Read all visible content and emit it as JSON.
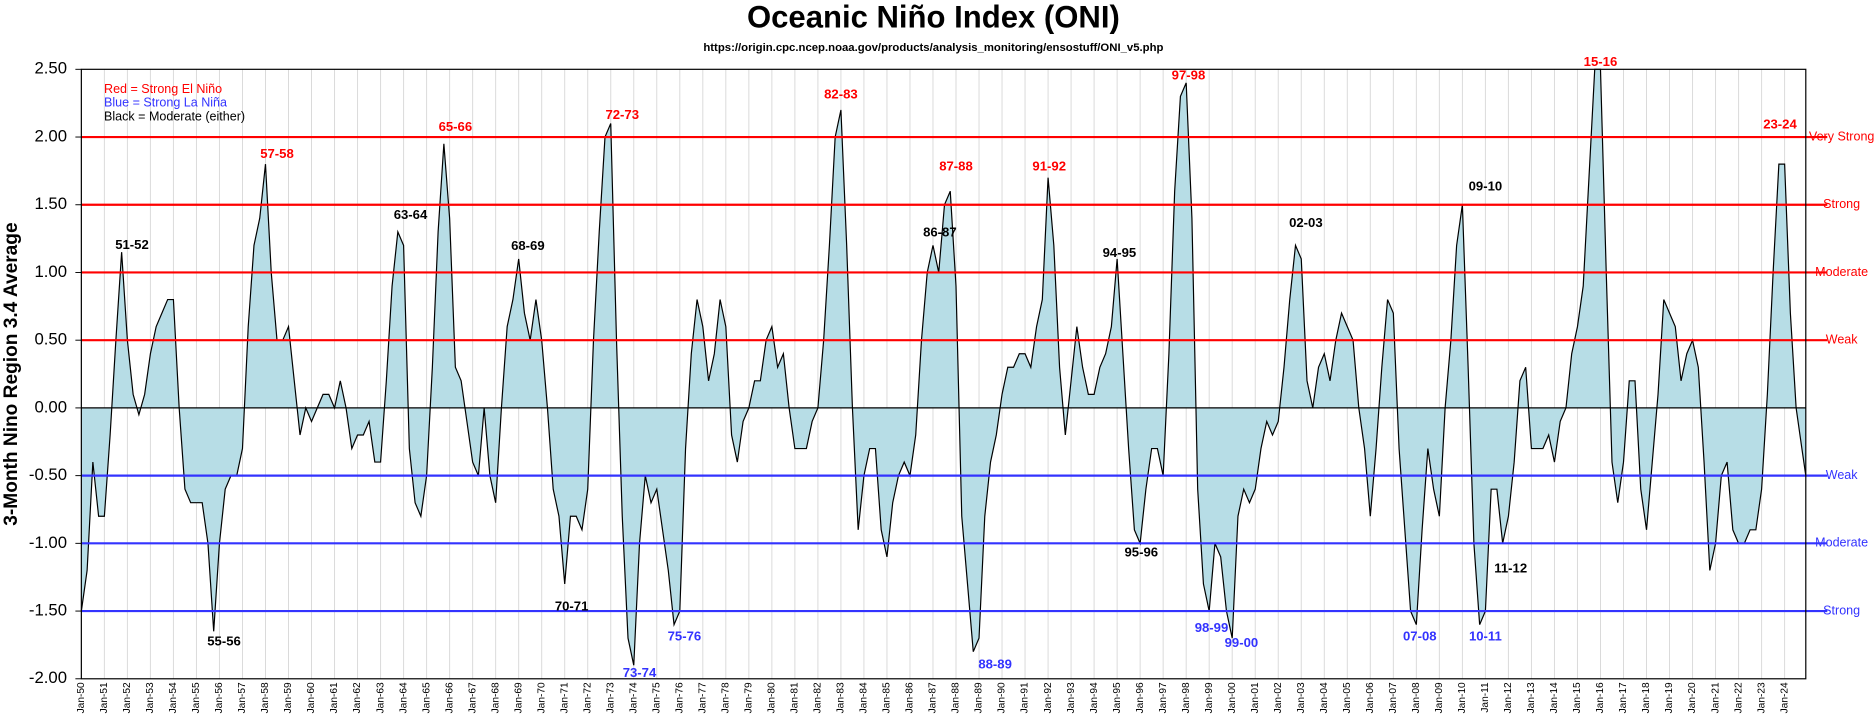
{
  "chart_data": {
    "type": "area",
    "title": "Oceanic Niño Index (ONI)",
    "subtitle": "https://origin.cpc.ncep.noaa.gov/products/analysis_monitoring/ensostuff/ONI_v5.php",
    "y_label": "3-Month Nino Region 3.4 Average",
    "legend_notes": [
      {
        "text": "Red = Strong  El Niño",
        "color": "#ff0000"
      },
      {
        "text": "Blue = Strong  La Niña",
        "color": "#3333ff"
      },
      {
        "text": "Black = Moderate  (either)",
        "color": "#000000"
      }
    ],
    "fill_color": "#b7dde6",
    "line_color": "#000000",
    "grid": true,
    "xlim": [
      1950,
      2024.92
    ],
    "ylim": [
      -2.0,
      2.5
    ],
    "yticks": [
      {
        "value": -2.0,
        "label": "-2.00"
      },
      {
        "value": -1.5,
        "label": "-1.50"
      },
      {
        "value": -1.0,
        "label": "-1.00"
      },
      {
        "value": -0.5,
        "label": "-0.50"
      },
      {
        "value": 0,
        "label": "0.00"
      },
      {
        "value": 0.5,
        "label": "0.50"
      },
      {
        "value": 1.0,
        "label": "1.00"
      },
      {
        "value": 1.5,
        "label": "1.50"
      },
      {
        "value": 2.0,
        "label": "2.00"
      },
      {
        "value": 2.5,
        "label": "2.50"
      }
    ],
    "xticks": [
      {
        "value": 1950,
        "label": "Jan-50"
      },
      {
        "value": 1951,
        "label": "Jan-51"
      },
      {
        "value": 1952,
        "label": "Jan-52"
      },
      {
        "value": 1953,
        "label": "Jan-53"
      },
      {
        "value": 1954,
        "label": "Jan-54"
      },
      {
        "value": 1955,
        "label": "Jan-55"
      },
      {
        "value": 1956,
        "label": "Jan-56"
      },
      {
        "value": 1957,
        "label": "Jan-57"
      },
      {
        "value": 1958,
        "label": "Jan-58"
      },
      {
        "value": 1959,
        "label": "Jan-59"
      },
      {
        "value": 1960,
        "label": "Jan-60"
      },
      {
        "value": 1961,
        "label": "Jan-61"
      },
      {
        "value": 1962,
        "label": "Jan-62"
      },
      {
        "value": 1963,
        "label": "Jan-63"
      },
      {
        "value": 1964,
        "label": "Jan-64"
      },
      {
        "value": 1965,
        "label": "Jan-65"
      },
      {
        "value": 1966,
        "label": "Jan-66"
      },
      {
        "value": 1967,
        "label": "Jan-67"
      },
      {
        "value": 1968,
        "label": "Jan-68"
      },
      {
        "value": 1969,
        "label": "Jan-69"
      },
      {
        "value": 1970,
        "label": "Jan-70"
      },
      {
        "value": 1971,
        "label": "Jan-71"
      },
      {
        "value": 1972,
        "label": "Jan-72"
      },
      {
        "value": 1973,
        "label": "Jan-73"
      },
      {
        "value": 1974,
        "label": "Jan-74"
      },
      {
        "value": 1975,
        "label": "Jan-75"
      },
      {
        "value": 1976,
        "label": "Jan-76"
      },
      {
        "value": 1977,
        "label": "Jan-77"
      },
      {
        "value": 1978,
        "label": "Jan-78"
      },
      {
        "value": 1979,
        "label": "Jan-79"
      },
      {
        "value": 1980,
        "label": "Jan-80"
      },
      {
        "value": 1981,
        "label": "Jan-81"
      },
      {
        "value": 1982,
        "label": "Jan-82"
      },
      {
        "value": 1983,
        "label": "Jan-83"
      },
      {
        "value": 1984,
        "label": "Jan-84"
      },
      {
        "value": 1985,
        "label": "Jan-85"
      },
      {
        "value": 1986,
        "label": "Jan-86"
      },
      {
        "value": 1987,
        "label": "Jan-87"
      },
      {
        "value": 1988,
        "label": "Jan-88"
      },
      {
        "value": 1989,
        "label": "Jan-89"
      },
      {
        "value": 1990,
        "label": "Jan-90"
      },
      {
        "value": 1991,
        "label": "Jan-91"
      },
      {
        "value": 1992,
        "label": "Jan-92"
      },
      {
        "value": 1993,
        "label": "Jan-93"
      },
      {
        "value": 1994,
        "label": "Jan-94"
      },
      {
        "value": 1995,
        "label": "Jan-95"
      },
      {
        "value": 1996,
        "label": "Jan-96"
      },
      {
        "value": 1997,
        "label": "Jan-97"
      },
      {
        "value": 1998,
        "label": "Jan-98"
      },
      {
        "value": 1999,
        "label": "Jan-99"
      },
      {
        "value": 2000,
        "label": "Jan-00"
      },
      {
        "value": 2001,
        "label": "Jan-01"
      },
      {
        "value": 2002,
        "label": "Jan-02"
      },
      {
        "value": 2003,
        "label": "Jan-03"
      },
      {
        "value": 2004,
        "label": "Jan-04"
      },
      {
        "value": 2005,
        "label": "Jan-05"
      },
      {
        "value": 2006,
        "label": "Jan-06"
      },
      {
        "value": 2007,
        "label": "Jan-07"
      },
      {
        "value": 2008,
        "label": "Jan-08"
      },
      {
        "value": 2009,
        "label": "Jan-09"
      },
      {
        "value": 2010,
        "label": "Jan-10"
      },
      {
        "value": 2011,
        "label": "Jan-11"
      },
      {
        "value": 2012,
        "label": "Jan-12"
      },
      {
        "value": 2013,
        "label": "Jan-13"
      },
      {
        "value": 2014,
        "label": "Jan-14"
      },
      {
        "value": 2015,
        "label": "Jan-15"
      },
      {
        "value": 2016,
        "label": "Jan-16"
      },
      {
        "value": 2017,
        "label": "Jan-17"
      },
      {
        "value": 2018,
        "label": "Jan-18"
      },
      {
        "value": 2019,
        "label": "Jan-19"
      },
      {
        "value": 2020,
        "label": "Jan-20"
      },
      {
        "value": 2021,
        "label": "Jan-21"
      },
      {
        "value": 2022,
        "label": "Jan-22"
      },
      {
        "value": 2023,
        "label": "Jan-23"
      },
      {
        "value": 2024,
        "label": "Jan-24"
      }
    ],
    "thresholds": [
      {
        "value": 2.0,
        "label": "Very Strong",
        "color": "#ff0000"
      },
      {
        "value": 1.5,
        "label": "Strong",
        "color": "#ff0000"
      },
      {
        "value": 1.0,
        "label": "Moderate",
        "color": "#ff0000"
      },
      {
        "value": 0.5,
        "label": "Weak",
        "color": "#ff0000"
      },
      {
        "value": -0.5,
        "label": "Weak",
        "color": "#3333ff"
      },
      {
        "value": -1.0,
        "label": "Moderate",
        "color": "#3333ff"
      },
      {
        "value": -1.5,
        "label": "Strong",
        "color": "#3333ff"
      }
    ],
    "x": [
      1950,
      1950.25,
      1950.5,
      1950.75,
      1951,
      1951.25,
      1951.5,
      1951.75,
      1952,
      1952.25,
      1952.5,
      1952.75,
      1953,
      1953.25,
      1953.5,
      1953.75,
      1954,
      1954.25,
      1954.5,
      1954.75,
      1955,
      1955.25,
      1955.5,
      1955.75,
      1956,
      1956.25,
      1956.5,
      1956.75,
      1957,
      1957.25,
      1957.5,
      1957.75,
      1958,
      1958.25,
      1958.5,
      1958.75,
      1959,
      1959.25,
      1959.5,
      1959.75,
      1960,
      1960.25,
      1960.5,
      1960.75,
      1961,
      1961.25,
      1961.5,
      1961.75,
      1962,
      1962.25,
      1962.5,
      1962.75,
      1963,
      1963.25,
      1963.5,
      1963.75,
      1964,
      1964.25,
      1964.5,
      1964.75,
      1965,
      1965.25,
      1965.5,
      1965.75,
      1966,
      1966.25,
      1966.5,
      1966.75,
      1967,
      1967.25,
      1967.5,
      1967.75,
      1968,
      1968.25,
      1968.5,
      1968.75,
      1969,
      1969.25,
      1969.5,
      1969.75,
      1970,
      1970.25,
      1970.5,
      1970.75,
      1971,
      1971.25,
      1971.5,
      1971.75,
      1972,
      1972.25,
      1972.5,
      1972.75,
      1973,
      1973.25,
      1973.5,
      1973.75,
      1974,
      1974.25,
      1974.5,
      1974.75,
      1975,
      1975.25,
      1975.5,
      1975.75,
      1976,
      1976.25,
      1976.5,
      1976.75,
      1977,
      1977.25,
      1977.5,
      1977.75,
      1978,
      1978.25,
      1978.5,
      1978.75,
      1979,
      1979.25,
      1979.5,
      1979.75,
      1980,
      1980.25,
      1980.5,
      1980.75,
      1981,
      1981.25,
      1981.5,
      1981.75,
      1982,
      1982.25,
      1982.5,
      1982.75,
      1983,
      1983.25,
      1983.5,
      1983.75,
      1984,
      1984.25,
      1984.5,
      1984.75,
      1985,
      1985.25,
      1985.5,
      1985.75,
      1986,
      1986.25,
      1986.5,
      1986.75,
      1987,
      1987.25,
      1987.5,
      1987.75,
      1988,
      1988.25,
      1988.5,
      1988.75,
      1989,
      1989.25,
      1989.5,
      1989.75,
      1990,
      1990.25,
      1990.5,
      1990.75,
      1991,
      1991.25,
      1991.5,
      1991.75,
      1992,
      1992.25,
      1992.5,
      1992.75,
      1993,
      1993.25,
      1993.5,
      1993.75,
      1994,
      1994.25,
      1994.5,
      1994.75,
      1995,
      1995.25,
      1995.5,
      1995.75,
      1996,
      1996.25,
      1996.5,
      1996.75,
      1997,
      1997.25,
      1997.5,
      1997.75,
      1998,
      1998.25,
      1998.5,
      1998.75,
      1999,
      1999.25,
      1999.5,
      1999.75,
      2000,
      2000.25,
      2000.5,
      2000.75,
      2001,
      2001.25,
      2001.5,
      2001.75,
      2002,
      2002.25,
      2002.5,
      2002.75,
      2003,
      2003.25,
      2003.5,
      2003.75,
      2004,
      2004.25,
      2004.5,
      2004.75,
      2005,
      2005.25,
      2005.5,
      2005.75,
      2006,
      2006.25,
      2006.5,
      2006.75,
      2007,
      2007.25,
      2007.5,
      2007.75,
      2008,
      2008.25,
      2008.5,
      2008.75,
      2009,
      2009.25,
      2009.5,
      2009.75,
      2010,
      2010.25,
      2010.5,
      2010.75,
      2011,
      2011.25,
      2011.5,
      2011.75,
      2012,
      2012.25,
      2012.5,
      2012.75,
      2013,
      2013.25,
      2013.5,
      2013.75,
      2014,
      2014.25,
      2014.5,
      2014.75,
      2015,
      2015.25,
      2015.5,
      2015.75,
      2016,
      2016.25,
      2016.5,
      2016.75,
      2017,
      2017.25,
      2017.5,
      2017.75,
      2018,
      2018.25,
      2018.5,
      2018.75,
      2019,
      2019.25,
      2019.5,
      2019.75,
      2020,
      2020.25,
      2020.5,
      2020.75,
      2021,
      2021.25,
      2021.5,
      2021.75,
      2022,
      2022.25,
      2022.5,
      2022.75,
      2023,
      2023.25,
      2023.5,
      2023.75,
      2024,
      2024.25,
      2024.5,
      2024.75,
      2024.92
    ],
    "values": [
      -1.5,
      -1.2,
      -0.4,
      -0.8,
      -0.8,
      -0.2,
      0.5,
      1.15,
      0.5,
      0.1,
      -0.05,
      0.1,
      0.4,
      0.6,
      0.7,
      0.8,
      0.8,
      0.0,
      -0.6,
      -0.7,
      -0.7,
      -0.7,
      -1.0,
      -1.65,
      -1.0,
      -0.6,
      -0.5,
      -0.5,
      -0.3,
      0.6,
      1.2,
      1.4,
      1.8,
      1.0,
      0.5,
      0.5,
      0.6,
      0.2,
      -0.2,
      0.0,
      -0.1,
      0.0,
      0.1,
      0.1,
      0.0,
      0.2,
      0.0,
      -0.3,
      -0.2,
      -0.2,
      -0.1,
      -0.4,
      -0.4,
      0.2,
      0.9,
      1.3,
      1.2,
      -0.3,
      -0.7,
      -0.8,
      -0.5,
      0.3,
      1.3,
      1.95,
      1.4,
      0.3,
      0.2,
      -0.1,
      -0.4,
      -0.5,
      0.0,
      -0.5,
      -0.7,
      0.0,
      0.6,
      0.8,
      1.1,
      0.7,
      0.5,
      0.8,
      0.5,
      0.0,
      -0.6,
      -0.8,
      -1.3,
      -0.8,
      -0.8,
      -0.9,
      -0.6,
      0.5,
      1.3,
      2.0,
      2.1,
      0.5,
      -0.8,
      -1.7,
      -1.9,
      -1.0,
      -0.5,
      -0.7,
      -0.6,
      -0.9,
      -1.2,
      -1.6,
      -1.5,
      -0.3,
      0.4,
      0.8,
      0.6,
      0.2,
      0.4,
      0.8,
      0.6,
      -0.2,
      -0.4,
      -0.1,
      0.0,
      0.2,
      0.2,
      0.5,
      0.6,
      0.3,
      0.4,
      0.0,
      -0.3,
      -0.3,
      -0.3,
      -0.1,
      0.0,
      0.5,
      1.2,
      2.0,
      2.2,
      1.2,
      0.0,
      -0.9,
      -0.5,
      -0.3,
      -0.3,
      -0.9,
      -1.1,
      -0.7,
      -0.5,
      -0.4,
      -0.5,
      -0.2,
      0.5,
      1.0,
      1.2,
      1.0,
      1.5,
      1.6,
      0.9,
      -0.8,
      -1.3,
      -1.8,
      -1.7,
      -0.8,
      -0.4,
      -0.2,
      0.1,
      0.3,
      0.3,
      0.4,
      0.4,
      0.3,
      0.6,
      0.8,
      1.7,
      1.2,
      0.3,
      -0.2,
      0.2,
      0.6,
      0.3,
      0.1,
      0.1,
      0.3,
      0.4,
      0.6,
      1.1,
      0.4,
      -0.3,
      -0.9,
      -1.0,
      -0.6,
      -0.3,
      -0.3,
      -0.5,
      0.4,
      1.6,
      2.3,
      2.4,
      1.4,
      -0.6,
      -1.3,
      -1.5,
      -1.0,
      -1.1,
      -1.5,
      -1.7,
      -0.8,
      -0.6,
      -0.7,
      -0.6,
      -0.3,
      -0.1,
      -0.2,
      -0.1,
      0.3,
      0.8,
      1.2,
      1.1,
      0.2,
      0.0,
      0.3,
      0.4,
      0.2,
      0.5,
      0.7,
      0.6,
      0.5,
      0.0,
      -0.3,
      -0.8,
      -0.3,
      0.3,
      0.8,
      0.7,
      -0.3,
      -0.9,
      -1.5,
      -1.6,
      -0.9,
      -0.3,
      -0.6,
      -0.8,
      0.0,
      0.5,
      1.2,
      1.5,
      0.3,
      -1.0,
      -1.6,
      -1.5,
      -0.6,
      -0.6,
      -1.0,
      -0.8,
      -0.4,
      0.2,
      0.3,
      -0.3,
      -0.3,
      -0.3,
      -0.2,
      -0.4,
      -0.1,
      0.0,
      0.4,
      0.6,
      0.9,
      1.7,
      2.5,
      2.5,
      1.0,
      -0.4,
      -0.7,
      -0.4,
      0.2,
      0.2,
      -0.6,
      -0.9,
      -0.4,
      0.1,
      0.8,
      0.7,
      0.6,
      0.2,
      0.4,
      0.5,
      0.3,
      -0.4,
      -1.2,
      -1.0,
      -0.5,
      -0.4,
      -0.9,
      -1.0,
      -1.0,
      -0.9,
      -0.9,
      -0.6,
      0.1,
      1.0,
      1.8,
      1.8,
      0.7,
      0.0,
      -0.3,
      -0.5
    ],
    "annotations": [
      {
        "text": "51-52",
        "x": 1952.2,
        "y": 1.2,
        "color": "#000000"
      },
      {
        "text": "55-56",
        "x": 1956.2,
        "y": -1.73,
        "color": "#000000"
      },
      {
        "text": "57-58",
        "x": 1958.5,
        "y": 1.87,
        "color": "#ff0000"
      },
      {
        "text": "63-64",
        "x": 1964.3,
        "y": 1.42,
        "color": "#000000"
      },
      {
        "text": "65-66",
        "x": 1966.25,
        "y": 2.07,
        "color": "#ff0000"
      },
      {
        "text": "68-69",
        "x": 1969.4,
        "y": 1.19,
        "color": "#000000"
      },
      {
        "text": "70-71",
        "x": 1971.3,
        "y": -1.47,
        "color": "#000000"
      },
      {
        "text": "72-73",
        "x": 1973.5,
        "y": 2.16,
        "color": "#ff0000"
      },
      {
        "text": "73-74",
        "x": 1974.25,
        "y": -1.96,
        "color": "#3333ff"
      },
      {
        "text": "75-76",
        "x": 1976.2,
        "y": -1.69,
        "color": "#3333ff"
      },
      {
        "text": "82-83",
        "x": 1983.0,
        "y": 2.31,
        "color": "#ff0000"
      },
      {
        "text": "86-87",
        "x": 1987.3,
        "y": 1.29,
        "color": "#000000"
      },
      {
        "text": "87-88",
        "x": 1988.0,
        "y": 1.78,
        "color": "#ff0000"
      },
      {
        "text": "88-89",
        "x": 1989.7,
        "y": -1.9,
        "color": "#3333ff"
      },
      {
        "text": "91-92",
        "x": 1992.05,
        "y": 1.78,
        "color": "#ff0000"
      },
      {
        "text": "94-95",
        "x": 1995.1,
        "y": 1.14,
        "color": "#000000"
      },
      {
        "text": "95-96",
        "x": 1996.05,
        "y": -1.07,
        "color": "#000000"
      },
      {
        "text": "97-98",
        "x": 1998.1,
        "y": 2.45,
        "color": "#ff0000"
      },
      {
        "text": "98-99",
        "x": 1999.1,
        "y": -1.63,
        "color": "#3333ff"
      },
      {
        "text": "99-00",
        "x": 2000.4,
        "y": -1.74,
        "color": "#3333ff"
      },
      {
        "text": "02-03",
        "x": 2003.2,
        "y": 1.36,
        "color": "#000000"
      },
      {
        "text": "07-08",
        "x": 2008.15,
        "y": -1.69,
        "color": "#3333ff"
      },
      {
        "text": "09-10",
        "x": 2011.0,
        "y": 1.63,
        "color": "#000000"
      },
      {
        "text": "10-11",
        "x": 2011.0,
        "y": -1.69,
        "color": "#3333ff"
      },
      {
        "text": "11-12",
        "x": 2012.1,
        "y": -1.19,
        "color": "#000000"
      },
      {
        "text": "15-16",
        "x": 2016.0,
        "y": 2.55,
        "color": "#ff0000"
      },
      {
        "text": "23-24",
        "x": 2023.8,
        "y": 2.09,
        "color": "#ff0000"
      }
    ]
  }
}
